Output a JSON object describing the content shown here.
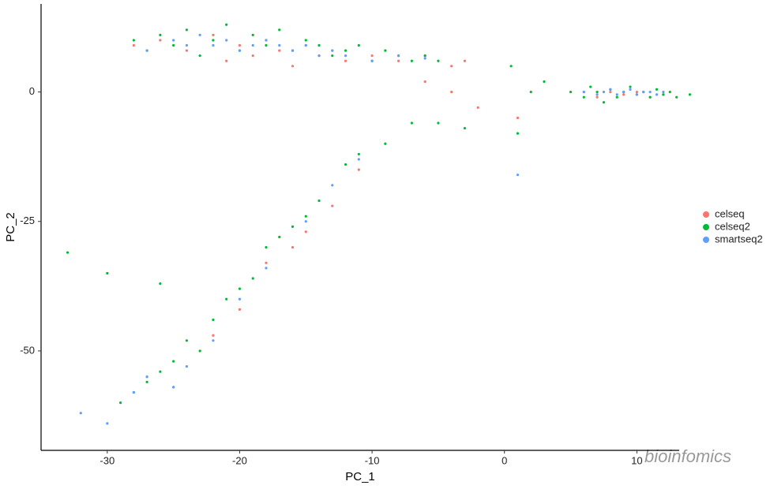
{
  "chart_data": {
    "type": "scatter",
    "x_label": "PC_1",
    "y_label": "PC_2",
    "watermark": "bioinfomics",
    "xlim": [
      -35,
      13.2
    ],
    "ylim": [
      -69.2,
      17
    ],
    "xticks": [
      -30,
      -20,
      -10,
      0,
      10
    ],
    "yticks": [
      -50,
      -25,
      0
    ],
    "grid": false,
    "legend": "right",
    "series": [
      {
        "name": "celseq",
        "color": "#F8766D",
        "x": [
          -28,
          -26,
          -24,
          -22,
          -21,
          -20,
          -19,
          -18,
          -17,
          -16,
          -15,
          -14,
          -13,
          -12,
          -10,
          -8,
          -6,
          -4,
          -3,
          6,
          7,
          8,
          9,
          10,
          11,
          12,
          -27,
          -25,
          -23,
          -22,
          -20,
          -18,
          -16,
          -15,
          -13,
          -11,
          -6,
          -4,
          -2,
          1
        ],
        "values": [
          9,
          10,
          8,
          11,
          6,
          9,
          7,
          10,
          8,
          5,
          9,
          7,
          8,
          6,
          7,
          6,
          7,
          5,
          6,
          0,
          -1,
          0,
          -0.5,
          0,
          -1,
          -0.5,
          -55,
          -57,
          -50,
          -47,
          -42,
          -33,
          -30,
          -27,
          -22,
          -15,
          2,
          0,
          -3,
          -5
        ]
      },
      {
        "name": "celseq2",
        "color": "#00BA38",
        "x": [
          -28,
          -27,
          -26,
          -25,
          -24,
          -23,
          -22,
          -21,
          -20,
          -19,
          -18,
          -17,
          -16,
          -15,
          -14,
          -13,
          -12,
          -11,
          -10,
          -9,
          -8,
          -7,
          -6,
          -5,
          5,
          6,
          6.5,
          7,
          7.5,
          8,
          8.5,
          9,
          9.5,
          10,
          10.5,
          11,
          11.5,
          12,
          12.5,
          13,
          14,
          -29,
          -28,
          -27,
          -26,
          -25,
          -24,
          -23,
          -22,
          -21,
          -20,
          -19,
          -18,
          -17,
          -16,
          -15,
          -14,
          -12,
          -11,
          -9,
          -7,
          -5,
          -3,
          -33,
          -30,
          -26,
          1,
          2,
          3,
          0.5
        ],
        "values": [
          10,
          8,
          11,
          9,
          12,
          7,
          10,
          13,
          8,
          11,
          9,
          12,
          8,
          10,
          9,
          7,
          8,
          9,
          6,
          8,
          7,
          6,
          7,
          6,
          0,
          -1,
          1,
          0,
          -2,
          0.5,
          -1,
          0,
          1,
          -0.5,
          0,
          -1,
          0.5,
          -0.5,
          0,
          -1,
          -0.5,
          -60,
          -58,
          -56,
          -54,
          -52,
          -48,
          -50,
          -44,
          -40,
          -38,
          -36,
          -30,
          -28,
          -26,
          -24,
          -21,
          -14,
          -12,
          -10,
          -6,
          -6,
          -7,
          -31,
          -35,
          -37,
          -8,
          0,
          2,
          5
        ]
      },
      {
        "name": "smartseq2",
        "color": "#619CFF",
        "x": [
          -27,
          -25,
          -24,
          -23,
          -22,
          -21,
          -20,
          -19,
          -18,
          -17,
          -16,
          -15,
          -14,
          -13,
          -12,
          -10,
          -8,
          -6,
          6,
          7,
          7.5,
          8,
          8.5,
          9,
          9.5,
          10,
          10.5,
          11,
          11.5,
          12,
          -32,
          -30,
          -28,
          -27,
          -25,
          -24,
          -22,
          -20,
          -18,
          -15,
          -13,
          -11,
          1
        ],
        "values": [
          8,
          10,
          9,
          11,
          9,
          10,
          8,
          9,
          10,
          9,
          8,
          9,
          7,
          8,
          7,
          6,
          7,
          6.5,
          0,
          -0.5,
          0,
          0.5,
          -0.5,
          0,
          0.5,
          -0.5,
          0,
          0,
          -0.5,
          0,
          -62,
          -64,
          -58,
          -55,
          -57,
          -53,
          -48,
          -40,
          -34,
          -25,
          -18,
          -13,
          -16
        ]
      }
    ]
  }
}
